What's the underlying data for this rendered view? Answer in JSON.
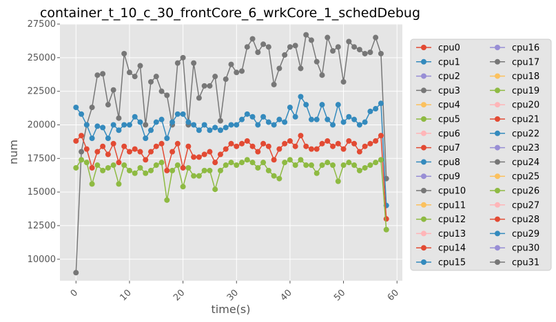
{
  "chart_data": {
    "type": "line",
    "title": "container_t_10_c_30_frontCore_6_wrkCore_1_schedDebug",
    "xlabel": "time(s)",
    "ylabel": "num",
    "xlim": [
      -3,
      61
    ],
    "ylim": [
      8400,
      27500
    ],
    "xticks": [
      0,
      10,
      20,
      30,
      40,
      50,
      60
    ],
    "yticks": [
      10000,
      12500,
      15000,
      17500,
      20000,
      22500,
      25000,
      27500
    ],
    "xtick_labels": [
      "0",
      "10",
      "20",
      "30",
      "40",
      "50",
      "60"
    ],
    "ytick_labels": [
      "10000",
      "12500",
      "15000",
      "17500",
      "20000",
      "22500",
      "25000",
      "27500"
    ],
    "grid": true,
    "legend_position": "right",
    "legend_columns": 2,
    "series": [
      {
        "name": "cpu0",
        "color": "#E24A33"
      },
      {
        "name": "cpu1",
        "color": "#348ABD"
      },
      {
        "name": "cpu2",
        "color": "#988ED5"
      },
      {
        "name": "cpu3",
        "color": "#777777"
      },
      {
        "name": "cpu4",
        "color": "#FBC15E"
      },
      {
        "name": "cpu5",
        "color": "#8EBA42"
      },
      {
        "name": "cpu6",
        "color": "#FFB5B8"
      },
      {
        "name": "cpu7",
        "color": "#E24A33"
      },
      {
        "name": "cpu8",
        "color": "#348ABD"
      },
      {
        "name": "cpu9",
        "color": "#988ED5"
      },
      {
        "name": "cpu10",
        "color": "#777777"
      },
      {
        "name": "cpu11",
        "color": "#FBC15E"
      },
      {
        "name": "cpu12",
        "color": "#8EBA42"
      },
      {
        "name": "cpu13",
        "color": "#FFB5B8"
      },
      {
        "name": "cpu14",
        "color": "#E24A33"
      },
      {
        "name": "cpu15",
        "color": "#348ABD"
      },
      {
        "name": "cpu16",
        "color": "#988ED5"
      },
      {
        "name": "cpu17",
        "color": "#777777"
      },
      {
        "name": "cpu18",
        "color": "#FBC15E"
      },
      {
        "name": "cpu19",
        "color": "#8EBA42"
      },
      {
        "name": "cpu20",
        "color": "#FFB5B8"
      },
      {
        "name": "cpu21",
        "color": "#E24A33"
      },
      {
        "name": "cpu22",
        "color": "#348ABD"
      },
      {
        "name": "cpu23",
        "color": "#988ED5"
      },
      {
        "name": "cpu24",
        "color": "#777777"
      },
      {
        "name": "cpu25",
        "color": "#FBC15E"
      },
      {
        "name": "cpu26",
        "color": "#8EBA42"
      },
      {
        "name": "cpu27",
        "color": "#FFB5B8"
      },
      {
        "name": "cpu28",
        "color": "#E24A33"
      },
      {
        "name": "cpu29",
        "color": "#348ABD"
      },
      {
        "name": "cpu30",
        "color": "#988ED5"
      },
      {
        "name": "cpu31",
        "color": "#777777",
        "x": [
          0,
          1,
          2,
          3,
          4,
          5,
          6,
          7,
          8,
          9,
          10,
          11,
          12,
          13,
          14,
          15,
          16,
          17,
          18,
          19,
          20,
          21,
          22,
          23,
          24,
          25,
          26,
          27,
          28,
          29,
          30,
          31,
          32,
          33,
          34,
          35,
          36,
          37,
          38,
          39,
          40,
          41,
          42,
          43,
          44,
          45,
          46,
          47,
          48,
          49,
          50,
          51,
          52,
          53,
          54,
          55,
          56,
          57,
          58
        ],
        "values": [
          9000,
          18000,
          20000,
          21300,
          23700,
          23800,
          21500,
          22600,
          20500,
          25300,
          23900,
          23600,
          24400,
          20000,
          23200,
          23600,
          22500,
          22200,
          20000,
          24600,
          25000,
          20000,
          24600,
          22000,
          22900,
          22900,
          23600,
          20300,
          23400,
          24500,
          23900,
          24000,
          25800,
          26400,
          25400,
          26000,
          25800,
          23000,
          24200,
          25200,
          25800,
          25900,
          24200,
          26700,
          26300,
          24700,
          23700,
          26500,
          25500,
          25800,
          23200,
          26200,
          25800,
          25600,
          25300,
          25400,
          26500,
          25300,
          16000
        ]
      },
      {
        "name": "band_high",
        "color": "#348ABD",
        "legend": false,
        "x": [
          0,
          1,
          2,
          3,
          4,
          5,
          6,
          7,
          8,
          9,
          10,
          11,
          12,
          13,
          14,
          15,
          16,
          17,
          18,
          19,
          20,
          21,
          22,
          23,
          24,
          25,
          26,
          27,
          28,
          29,
          30,
          31,
          32,
          33,
          34,
          35,
          36,
          37,
          38,
          39,
          40,
          41,
          42,
          43,
          44,
          45,
          46,
          47,
          48,
          49,
          50,
          51,
          52,
          53,
          54,
          55,
          56,
          57,
          58
        ],
        "values": [
          21300,
          20800,
          20000,
          19000,
          19900,
          19800,
          19000,
          20000,
          19600,
          20000,
          20000,
          20600,
          20200,
          19000,
          19600,
          20200,
          20400,
          19000,
          20200,
          20800,
          20800,
          20200,
          20000,
          19600,
          20000,
          19600,
          19800,
          19600,
          19800,
          20000,
          20000,
          20400,
          20800,
          20600,
          20000,
          20600,
          20200,
          20000,
          20400,
          20200,
          21300,
          20600,
          22100,
          21500,
          20400,
          20400,
          21500,
          20400,
          20000,
          21500,
          20200,
          20600,
          20400,
          20000,
          20200,
          21000,
          21200,
          21600,
          14000
        ]
      },
      {
        "name": "band_mid",
        "color": "#E24A33",
        "legend": false,
        "x": [
          0,
          1,
          2,
          3,
          4,
          5,
          6,
          7,
          8,
          9,
          10,
          11,
          12,
          13,
          14,
          15,
          16,
          17,
          18,
          19,
          20,
          21,
          22,
          23,
          24,
          25,
          26,
          27,
          28,
          29,
          30,
          31,
          32,
          33,
          34,
          35,
          36,
          37,
          38,
          39,
          40,
          41,
          42,
          43,
          44,
          45,
          46,
          47,
          48,
          49,
          50,
          51,
          52,
          53,
          54,
          55,
          56,
          57,
          58
        ],
        "values": [
          18800,
          19200,
          18200,
          16800,
          18000,
          18400,
          17800,
          18600,
          17200,
          18400,
          18000,
          18200,
          18000,
          17400,
          18000,
          18400,
          18600,
          16600,
          18000,
          18600,
          16800,
          18400,
          17600,
          17600,
          17800,
          18000,
          17200,
          17800,
          18200,
          18600,
          18400,
          18600,
          18800,
          18400,
          18000,
          18600,
          18400,
          17400,
          18200,
          18600,
          18800,
          18400,
          19200,
          18400,
          18200,
          18200,
          18600,
          18800,
          18400,
          18600,
          18200,
          18800,
          18600,
          18000,
          18400,
          18600,
          18800,
          19200,
          13000
        ]
      },
      {
        "name": "band_low",
        "color": "#8EBA42",
        "legend": false,
        "x": [
          0,
          1,
          2,
          3,
          4,
          5,
          6,
          7,
          8,
          9,
          10,
          11,
          12,
          13,
          14,
          15,
          16,
          17,
          18,
          19,
          20,
          21,
          22,
          23,
          24,
          25,
          26,
          27,
          28,
          29,
          30,
          31,
          32,
          33,
          34,
          35,
          36,
          37,
          38,
          39,
          40,
          41,
          42,
          43,
          44,
          45,
          46,
          47,
          48,
          49,
          50,
          51,
          52,
          53,
          54,
          55,
          56,
          57,
          58
        ],
        "values": [
          16800,
          17400,
          17200,
          15600,
          17000,
          16600,
          16800,
          17000,
          15600,
          17000,
          16600,
          16400,
          16800,
          16400,
          16600,
          17000,
          17200,
          14400,
          16600,
          17000,
          15400,
          16800,
          16200,
          16200,
          16600,
          16600,
          15200,
          16600,
          17000,
          17200,
          17000,
          17200,
          17400,
          17200,
          16800,
          17200,
          16600,
          16200,
          16000,
          17200,
          17400,
          17000,
          17400,
          17000,
          17000,
          16400,
          17000,
          17200,
          17000,
          15800,
          17000,
          17200,
          17000,
          16600,
          16800,
          17000,
          17200,
          17400,
          12200
        ]
      }
    ]
  }
}
